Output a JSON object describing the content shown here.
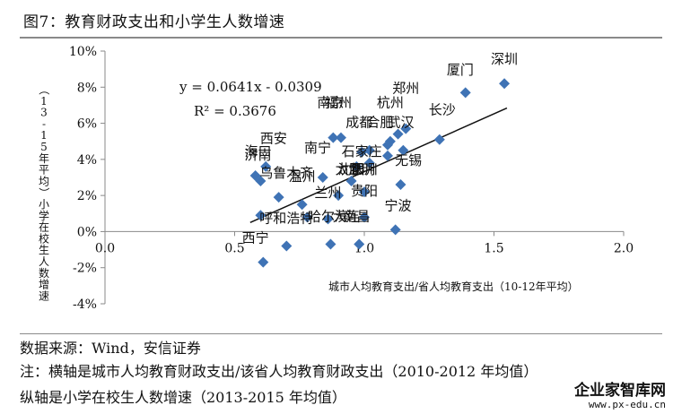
{
  "title": "图7：教育财政支出和小学生人数增速",
  "chart_data": {
    "type": "scatter",
    "xlabel": "城市人均教育支出/省人均教育支出（10-12年平均）",
    "ylabel": "（13-15年平均）小学在校生人数增速",
    "xlim": [
      0.0,
      2.0
    ],
    "ylim": [
      -4,
      10
    ],
    "x_ticks": [
      "0.0",
      "0.5",
      "1.0",
      "1.5",
      "2.0"
    ],
    "y_ticks": [
      "-4%",
      "-2%",
      "0%",
      "2%",
      "4%",
      "6%",
      "8%",
      "10%"
    ],
    "equation": "y = 0.0641x - 0.0309",
    "r_squared": "R² = 0.3676",
    "trendline": {
      "slope": 6.41,
      "intercept": -3.09,
      "x_range": [
        0.56,
        1.55
      ]
    },
    "point_color": "#3f73b5",
    "points": [
      {
        "x": 1.54,
        "y": 8.2
      },
      {
        "x": 1.39,
        "y": 7.7
      },
      {
        "x": 1.29,
        "y": 5.1
      },
      {
        "x": 1.16,
        "y": 5.7
      },
      {
        "x": 1.13,
        "y": 5.4
      },
      {
        "x": 1.15,
        "y": 4.5
      },
      {
        "x": 1.1,
        "y": 5.0
      },
      {
        "x": 1.09,
        "y": 4.8
      },
      {
        "x": 1.02,
        "y": 4.5
      },
      {
        "x": 0.99,
        "y": 4.4
      },
      {
        "x": 0.88,
        "y": 5.2
      },
      {
        "x": 0.91,
        "y": 5.2
      },
      {
        "x": 1.09,
        "y": 4.2
      },
      {
        "x": 1.02,
        "y": 3.8
      },
      {
        "x": 0.97,
        "y": 3.6
      },
      {
        "x": 0.62,
        "y": 3.6
      },
      {
        "x": 0.6,
        "y": 2.8
      },
      {
        "x": 0.58,
        "y": 3.1
      },
      {
        "x": 0.84,
        "y": 3.0
      },
      {
        "x": 0.95,
        "y": 2.8
      },
      {
        "x": 1.14,
        "y": 2.6
      },
      {
        "x": 0.67,
        "y": 1.9
      },
      {
        "x": 0.76,
        "y": 1.5
      },
      {
        "x": 0.9,
        "y": 2.0
      },
      {
        "x": 1.0,
        "y": 2.2
      },
      {
        "x": 0.6,
        "y": 0.9
      },
      {
        "x": 0.78,
        "y": 0.8
      },
      {
        "x": 0.86,
        "y": 0.7
      },
      {
        "x": 1.0,
        "y": 0.8
      },
      {
        "x": 1.12,
        "y": 0.1
      },
      {
        "x": 0.7,
        "y": -0.8
      },
      {
        "x": 0.87,
        "y": -0.7
      },
      {
        "x": 0.98,
        "y": -0.7
      },
      {
        "x": 0.61,
        "y": -1.7
      }
    ],
    "annotations": [
      {
        "text": "深圳",
        "x": 1.54,
        "y": 9.3
      },
      {
        "text": "厦门",
        "x": 1.37,
        "y": 8.7
      },
      {
        "text": "郑州",
        "x": 1.16,
        "y": 7.7
      },
      {
        "text": "杭州",
        "x": 1.1,
        "y": 6.9
      },
      {
        "text": "长沙",
        "x": 1.3,
        "y": 6.5
      },
      {
        "text": "福州",
        "x": 0.9,
        "y": 6.9
      },
      {
        "text": "南京",
        "x": 0.87,
        "y": 6.9
      },
      {
        "text": "成都",
        "x": 0.98,
        "y": 5.8
      },
      {
        "text": "武汉",
        "x": 1.14,
        "y": 5.8
      },
      {
        "text": "合肥",
        "x": 1.06,
        "y": 5.8
      },
      {
        "text": "西安",
        "x": 0.65,
        "y": 4.9
      },
      {
        "text": "海口",
        "x": 0.59,
        "y": 4.2
      },
      {
        "text": "济南",
        "x": 0.59,
        "y": 4.0
      },
      {
        "text": "南宁",
        "x": 0.82,
        "y": 4.4
      },
      {
        "text": "石家庄",
        "x": 0.99,
        "y": 4.2
      },
      {
        "text": "无锡",
        "x": 1.17,
        "y": 3.7
      },
      {
        "text": "乌鲁木齐",
        "x": 0.7,
        "y": 3.0
      },
      {
        "text": "温州",
        "x": 0.76,
        "y": 2.8
      },
      {
        "text": "沈阳",
        "x": 0.95,
        "y": 3.2
      },
      {
        "text": "太原",
        "x": 0.94,
        "y": 3.2
      },
      {
        "text": "昆明",
        "x": 0.99,
        "y": 3.2
      },
      {
        "text": "银川",
        "x": 1.0,
        "y": 3.2
      },
      {
        "text": "兰州",
        "x": 0.86,
        "y": 1.9
      },
      {
        "text": "贵阳",
        "x": 1.0,
        "y": 2.0
      },
      {
        "text": "宁波",
        "x": 1.13,
        "y": 1.2
      },
      {
        "text": "呼和浩特",
        "x": 0.7,
        "y": 0.5
      },
      {
        "text": "哈尔滨",
        "x": 0.86,
        "y": 0.6
      },
      {
        "text": "南昌",
        "x": 0.97,
        "y": 0.6
      },
      {
        "text": "大连",
        "x": 0.93,
        "y": 0.6
      },
      {
        "text": "西宁",
        "x": 0.58,
        "y": -0.6
      }
    ]
  },
  "source_note": "数据来源：Wind，安信证券",
  "note_x": "注：横轴是城市人均教育财政支出/该省人均教育财政支出（2010-2012 年均值）",
  "note_y": "纵轴是小学在校生人数增速（2013-2015 年均值）",
  "watermark": "企业家智库网",
  "watermark_url": "www.px-edu.cn"
}
